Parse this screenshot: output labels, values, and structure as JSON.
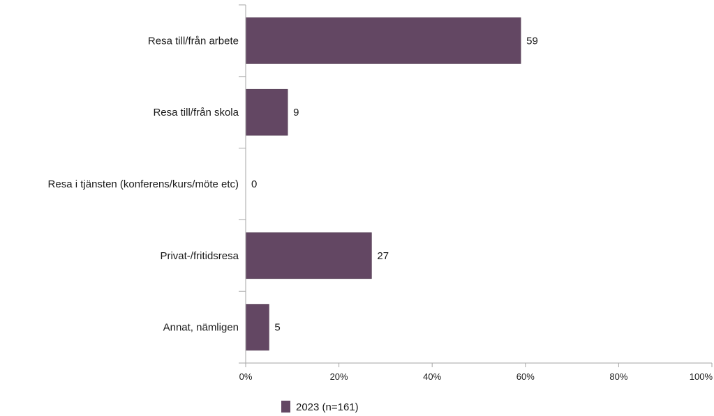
{
  "chart_data": {
    "type": "bar",
    "orientation": "horizontal",
    "categories": [
      "Resa till/från arbete",
      "Resa till/från skola",
      "Resa i tjänsten (konferens/kurs/möte etc)",
      "Privat-/fritidsresa",
      "Annat, nämligen"
    ],
    "series": [
      {
        "name": "2023 (n=161)",
        "values": [
          59,
          9,
          0,
          27,
          5
        ],
        "color": "#634763"
      }
    ],
    "data_labels": [
      "59",
      "9",
      "0",
      "27",
      "5"
    ],
    "xlim": [
      0,
      100
    ],
    "xticks": [
      "0%",
      "20%",
      "40%",
      "60%",
      "80%",
      "100%"
    ],
    "grid": false,
    "legend_position": "bottom-center"
  }
}
